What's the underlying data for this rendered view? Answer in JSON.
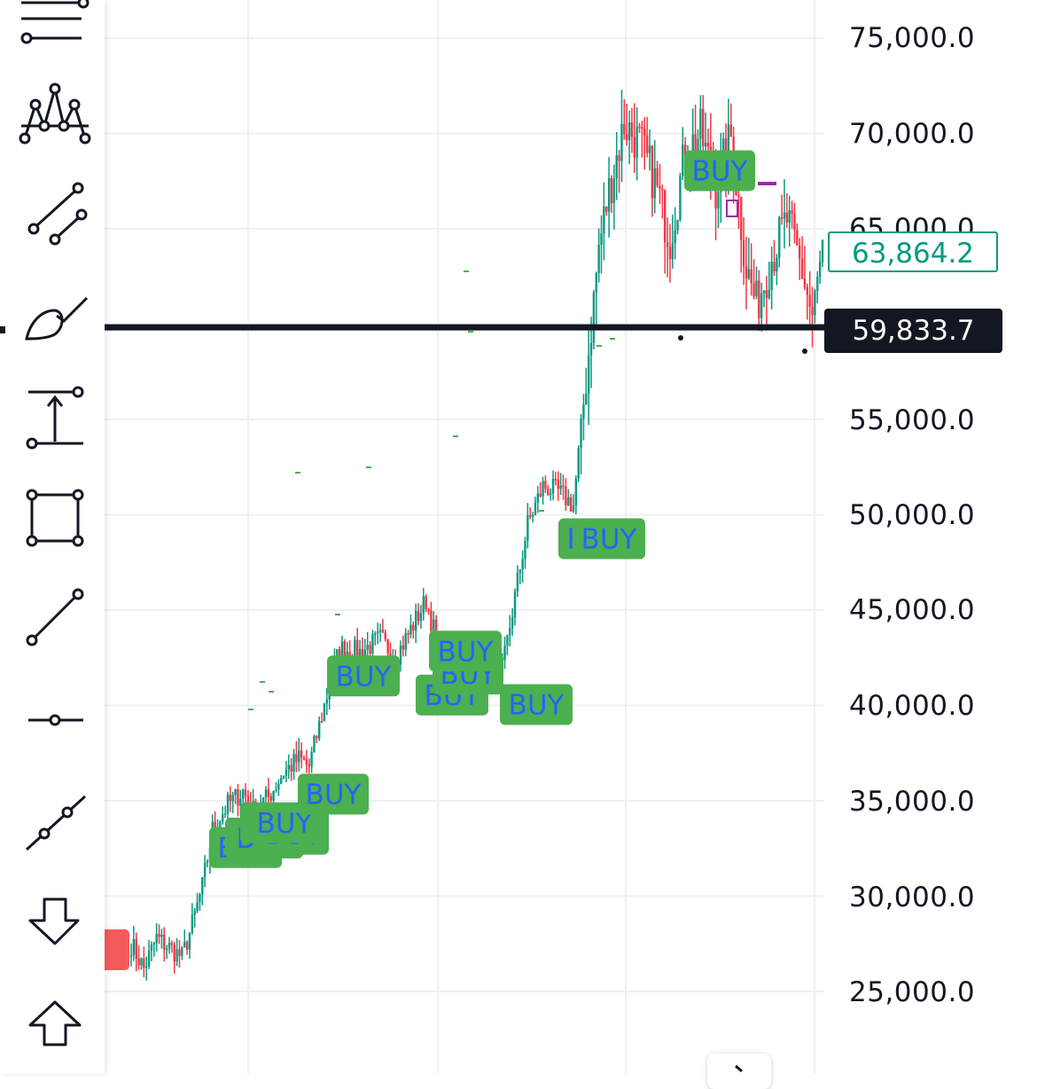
{
  "toolbar": {
    "tools": [
      {
        "icon": "long-position-icon"
      },
      {
        "icon": "head-and-shoulders-pattern-icon"
      },
      {
        "icon": "trend-angle-icon"
      },
      {
        "icon": "brush-icon"
      },
      {
        "icon": "measure-price-range-icon"
      },
      {
        "icon": "rectangle-icon"
      },
      {
        "icon": "trend-line-icon"
      },
      {
        "icon": "horizontal-ray-icon"
      },
      {
        "icon": "extended-line-icon"
      },
      {
        "icon": "arrow-marker-down-icon"
      },
      {
        "icon": "arrow-marker-up-icon"
      }
    ]
  },
  "price_scale": {
    "ticks": [
      "75,000.0",
      "70,000.0",
      "65,000.0",
      "55,000.0",
      "50,000.0",
      "45,000.0",
      "40,000.0",
      "35,000.0",
      "30,000.0",
      "25,000.0"
    ],
    "last_price": "63,864.2",
    "crosshair_price": "59,833.7"
  },
  "chart_data": {
    "type": "candlestick",
    "symbol_visible": false,
    "y_axis": {
      "min": 22000,
      "max": 77000,
      "tick_step": 5000
    },
    "crosshair_price": 59833.7,
    "last_price": 63864.2,
    "buy_signal_label": "BUY",
    "buy_signals_price": [
      32500,
      33000,
      33200,
      33800,
      35300,
      41500,
      40500,
      41600,
      42800,
      40000,
      48700,
      48700,
      68000
    ],
    "colors": {
      "up": "#089981",
      "down": "#f23645",
      "signal_bg": "#4caf50",
      "signal_text": "#2962ff",
      "sell_bg": "#f55a5a",
      "crosshair": "#131722"
    },
    "trend_anchors": [
      [
        0,
        27500
      ],
      [
        5,
        26200
      ],
      [
        10,
        27800
      ],
      [
        16,
        27200
      ],
      [
        20,
        26800
      ],
      [
        24,
        28500
      ],
      [
        28,
        30500
      ],
      [
        32,
        33500
      ],
      [
        38,
        34800
      ],
      [
        44,
        35500
      ],
      [
        48,
        34500
      ],
      [
        54,
        35200
      ],
      [
        60,
        36500
      ],
      [
        66,
        37200
      ],
      [
        70,
        36800
      ],
      [
        76,
        40000
      ],
      [
        82,
        43000
      ],
      [
        90,
        42800
      ],
      [
        98,
        43500
      ],
      [
        104,
        42500
      ],
      [
        110,
        44000
      ],
      [
        116,
        45500
      ],
      [
        122,
        42500
      ],
      [
        128,
        41500
      ],
      [
        134,
        40800
      ],
      [
        140,
        42500
      ],
      [
        146,
        41800
      ],
      [
        152,
        46500
      ],
      [
        156,
        49500
      ],
      [
        162,
        51500
      ],
      [
        168,
        51200
      ],
      [
        174,
        50500
      ],
      [
        180,
        58500
      ],
      [
        184,
        64000
      ],
      [
        188,
        67000
      ],
      [
        194,
        70500
      ],
      [
        200,
        69500
      ],
      [
        206,
        67500
      ],
      [
        212,
        64500
      ],
      [
        218,
        69000
      ],
      [
        224,
        70000
      ],
      [
        230,
        67200
      ],
      [
        236,
        69800
      ],
      [
        242,
        63000
      ],
      [
        246,
        61000
      ],
      [
        252,
        63500
      ],
      [
        258,
        65500
      ],
      [
        264,
        62800
      ],
      [
        268,
        60300
      ],
      [
        272,
        63800
      ]
    ],
    "candle_count": 273
  }
}
